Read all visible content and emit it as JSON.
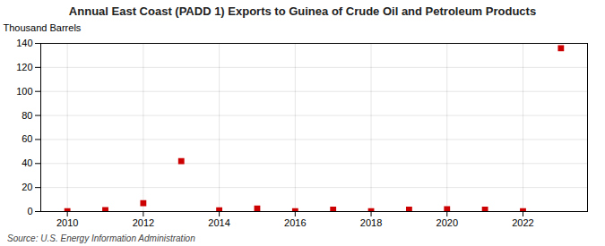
{
  "chart_data": {
    "type": "scatter",
    "title": "Annual East Coast (PADD 1) Exports to Guinea of Crude Oil and Petroleum Products",
    "ylabel": "Thousand Barrels",
    "source": "Source: U.S. Energy Information Administration",
    "x": [
      2010,
      2011,
      2012,
      2013,
      2014,
      2015,
      2016,
      2017,
      2018,
      2019,
      2020,
      2021,
      2022,
      2023
    ],
    "values": [
      0.3,
      1.2,
      7.0,
      42.0,
      1.0,
      2.5,
      0.2,
      1.5,
      0.2,
      1.5,
      2.0,
      1.5,
      0.3,
      136.0
    ],
    "color": "#cc0000",
    "marker": "square",
    "xlim": [
      2009.3,
      2023.7
    ],
    "xticks": [
      2010,
      2012,
      2014,
      2016,
      2018,
      2020,
      2022
    ],
    "ylim": [
      0,
      140
    ],
    "yticks": [
      0,
      20,
      40,
      60,
      80,
      100,
      120,
      140
    ],
    "grid": true
  }
}
